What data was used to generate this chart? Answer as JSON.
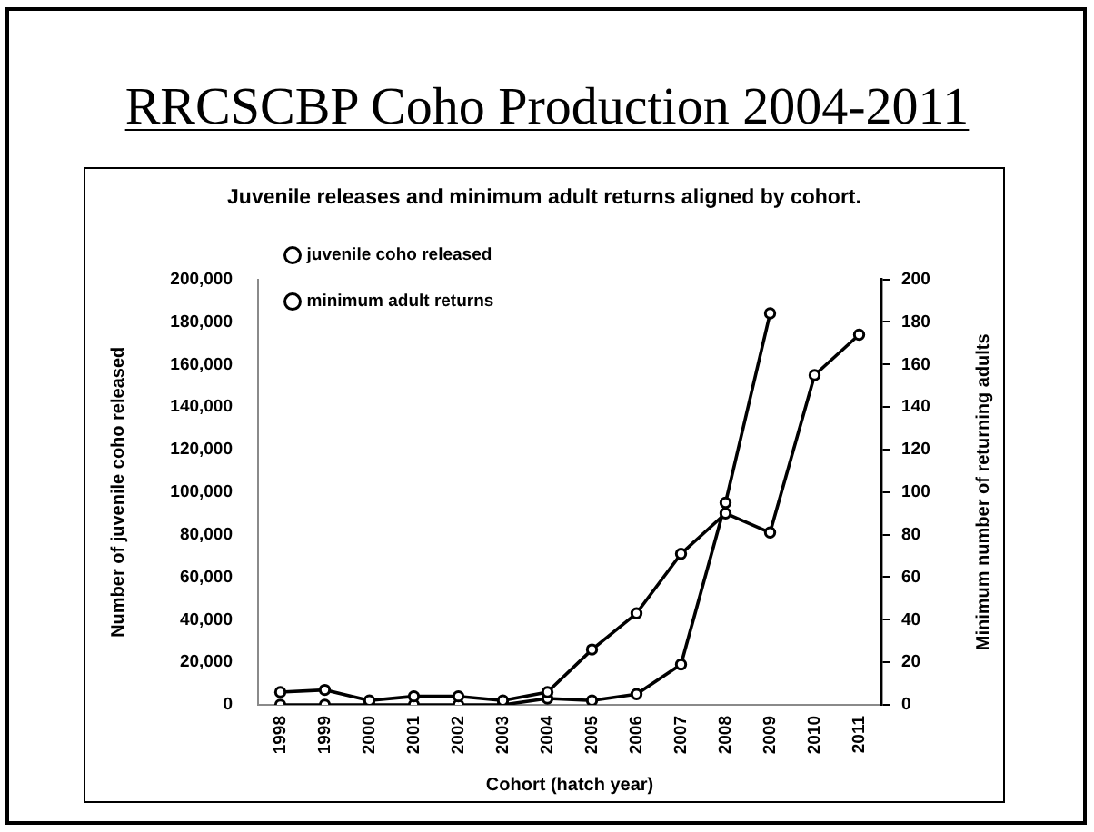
{
  "chart_data": {
    "type": "line",
    "title": "RRCSCBP Coho Production 2004-2011",
    "subtitle": "Juvenile releases and minimum adult returns aligned by cohort.",
    "xlabel": "Cohort (hatch year)",
    "ylabel": "Number of juvenile coho released",
    "y2label": "Minimum number of returning adults",
    "categories": [
      "1998",
      "1999",
      "2000",
      "2001",
      "2002",
      "2003",
      "2004",
      "2005",
      "2006",
      "2007",
      "2008",
      "2009",
      "2010",
      "2011"
    ],
    "series": [
      {
        "name": "juvenile coho released",
        "color": "#000000",
        "values": [
          6000,
          7000,
          2000,
          4000,
          4000,
          2000,
          6000,
          26000,
          43000,
          71000,
          90000,
          81000,
          155000,
          174000
        ]
      },
      {
        "name": "minimum adult returns",
        "color": "#000000",
        "axis": "y2",
        "values": [
          0,
          0,
          0,
          0,
          0,
          0,
          3,
          2,
          5,
          19,
          95,
          184,
          null,
          null
        ]
      }
    ],
    "ylim": [
      0,
      200000
    ],
    "yticks": [
      0,
      {
        "value": 20000,
        "label": "20,000"
      },
      {
        "value": 40000,
        "label": "40,000"
      },
      {
        "value": 60000,
        "label": "60,000"
      },
      {
        "value": 80000,
        "label": "80,000"
      },
      {
        "value": 100000,
        "label": "100,000"
      },
      {
        "value": 120000,
        "label": "120,000"
      },
      {
        "value": 140000,
        "label": "140,000"
      },
      {
        "value": 160000,
        "label": "160,000"
      },
      {
        "value": 180000,
        "label": "180,000"
      },
      {
        "value": 200000,
        "label": "200,000"
      }
    ],
    "y2lim": [
      0,
      200
    ],
    "y2ticks": [
      0,
      20,
      40,
      60,
      80,
      100,
      120,
      140,
      160,
      180,
      200
    ],
    "legend": "top left",
    "marker": "circle",
    "line_style": "solid",
    "grid": false
  }
}
